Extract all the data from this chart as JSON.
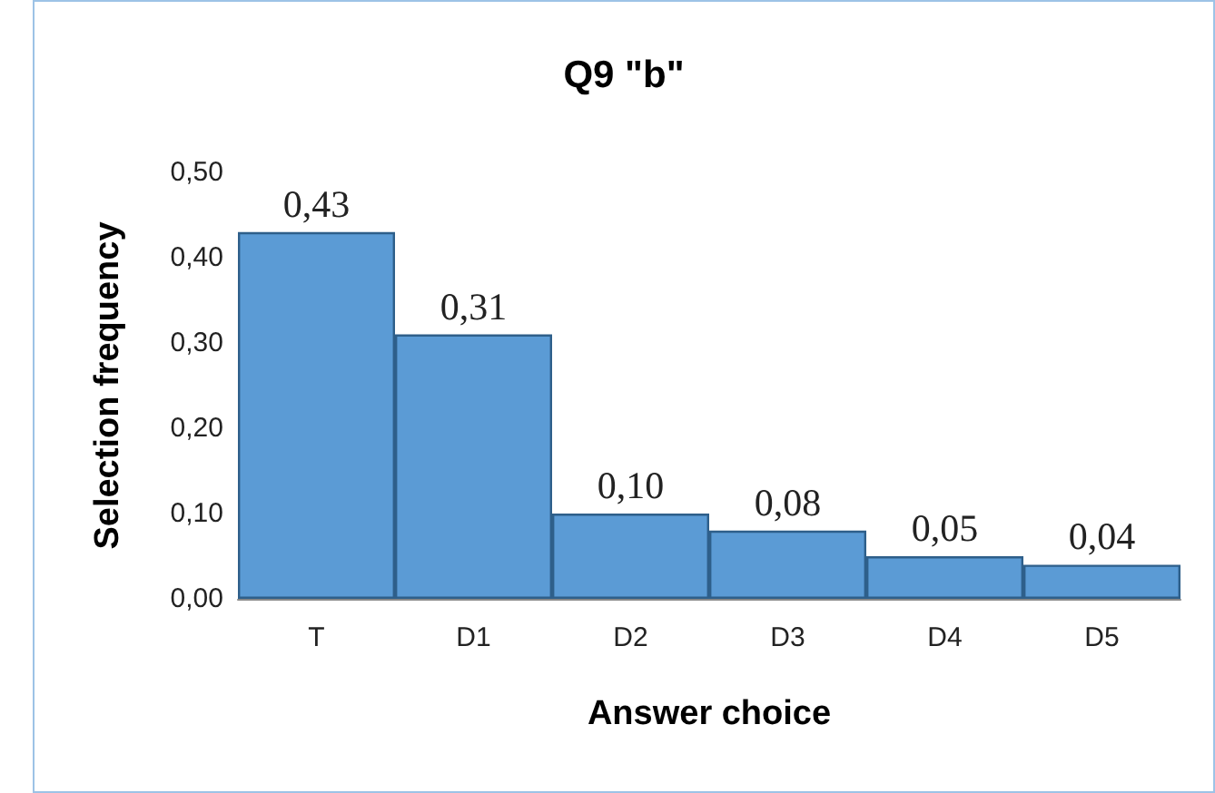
{
  "chart_data": {
    "type": "bar",
    "title": "Q9 \"b\"",
    "xlabel": "Answer choice",
    "ylabel": "Selection frequency",
    "categories": [
      "T",
      "D1",
      "D2",
      "D3",
      "D4",
      "D5"
    ],
    "values": [
      0.43,
      0.31,
      0.1,
      0.08,
      0.05,
      0.04
    ],
    "value_labels": [
      "0,43",
      "0,31",
      "0,10",
      "0,08",
      "0,05",
      "0,04"
    ],
    "color": "#5b9bd5",
    "ylim": [
      0,
      0.5
    ],
    "yticks": [
      {
        "value": 0,
        "label": "0,00"
      },
      {
        "value": 0.1,
        "label": "0,10"
      },
      {
        "value": 0.2,
        "label": "0,20"
      },
      {
        "value": 0.3,
        "label": "0,30"
      },
      {
        "value": 0.4,
        "label": "0,40"
      },
      {
        "value": 0.5,
        "label": "0,50"
      }
    ],
    "grid": false
  }
}
